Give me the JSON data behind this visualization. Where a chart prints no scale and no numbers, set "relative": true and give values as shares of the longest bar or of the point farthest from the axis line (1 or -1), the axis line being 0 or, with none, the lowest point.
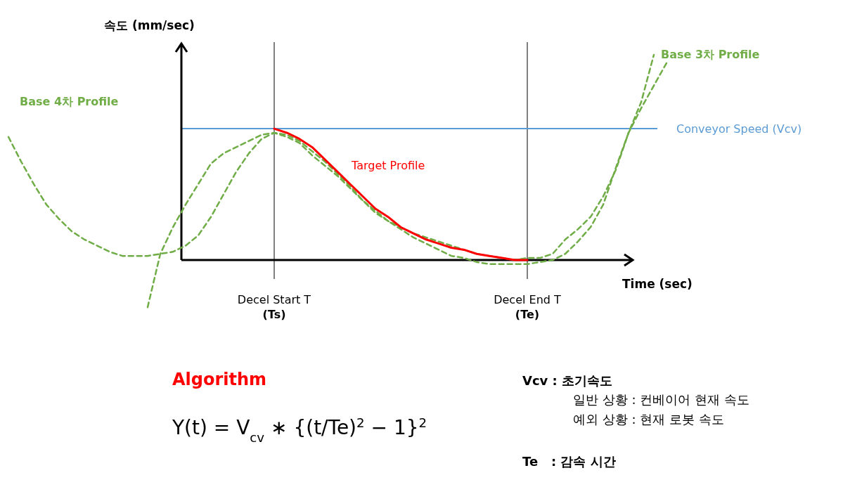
{
  "chart_data": {
    "type": "line",
    "relative": true,
    "ylabel": "속도 (mm/sec)",
    "xlabel": "Time (sec)",
    "grid": "x",
    "categories": [
      null,
      null,
      null,
      null,
      null,
      null,
      null,
      null,
      null,
      null,
      null,
      null,
      null,
      null,
      null,
      null,
      null,
      null,
      null,
      null,
      null,
      "Decel Start T\n(Ts)",
      null,
      null,
      null,
      null,
      null,
      null,
      null,
      null,
      null,
      null,
      null,
      null,
      null,
      null,
      null,
      null,
      null,
      null,
      null,
      "Decel End T\n(Te)",
      null,
      null,
      null,
      null,
      null,
      null,
      null,
      null,
      null,
      null,
      null
    ],
    "series": [
      {
        "name": "Base 4차 Profile",
        "color": "#70ad47",
        "line_style": "dashed",
        "values": [
          0.6,
          0.48,
          0.37,
          0.27,
          0.2,
          0.14,
          0.1,
          0.07,
          0.04,
          0.02,
          0.02,
          0.02,
          0.03,
          0.04,
          0.07,
          0.12,
          0.21,
          0.32,
          0.43,
          0.52,
          0.59,
          0.62,
          0.61,
          0.58,
          0.53,
          0.48,
          0.42,
          0.36,
          0.29,
          0.24,
          0.19,
          0.15,
          0.11,
          0.08,
          0.05,
          0.02,
          0.01,
          -0.01,
          -0.02,
          -0.02,
          -0.02,
          -0.02,
          -0.01,
          0.0,
          0.03,
          0.09,
          0.16,
          0.27,
          0.45,
          0.62,
          0.77,
          1.0,
          null
        ]
      },
      {
        "name": "Base 3차 Profile",
        "color": "#70ad47",
        "line_style": "dashed",
        "values": [
          null,
          null,
          null,
          null,
          null,
          null,
          null,
          null,
          null,
          null,
          null,
          -0.23,
          0.03,
          0.16,
          0.27,
          0.37,
          0.47,
          0.52,
          0.55,
          0.58,
          0.61,
          0.62,
          0.6,
          0.57,
          0.51,
          0.46,
          0.41,
          0.35,
          0.29,
          0.23,
          0.19,
          0.16,
          0.13,
          0.11,
          0.09,
          0.07,
          0.05,
          0.03,
          0.02,
          0.01,
          0.0,
          0.01,
          0.01,
          0.03,
          0.1,
          0.15,
          0.21,
          0.31,
          0.44,
          0.62,
          0.74,
          0.85,
          0.96
        ]
      },
      {
        "name": "Target Profile",
        "color": "#ff0000",
        "line_style": "solid",
        "values": [
          null,
          null,
          null,
          null,
          null,
          null,
          null,
          null,
          null,
          null,
          null,
          null,
          null,
          null,
          null,
          null,
          null,
          null,
          null,
          null,
          null,
          0.64,
          0.62,
          0.59,
          0.55,
          0.49,
          0.43,
          0.37,
          0.31,
          0.25,
          0.21,
          0.16,
          0.13,
          0.1,
          0.08,
          0.06,
          0.05,
          0.03,
          0.02,
          0.01,
          0.0,
          0.0,
          null,
          null,
          null,
          null,
          null,
          null,
          null,
          null,
          null,
          null,
          null
        ]
      }
    ],
    "ref_lines": [
      {
        "axis": "y",
        "value": 0.64,
        "label": "Conveyor Speed (Vcv)",
        "color": "#5b9bd5"
      },
      {
        "axis": "y",
        "value": 0,
        "color": "#000000"
      }
    ],
    "annotations": [
      "Algorithm",
      "Y(t) = V$_{cv}$ ∗ {(t/Te)$^{2}$ − 1}$^{2}$",
      "Vcv : 초기속도",
      "일반 상황 : 컨베이어 현재 속도",
      "예외 상황 : 현재 로봇 속도",
      "Te   : 감속 시간"
    ]
  }
}
